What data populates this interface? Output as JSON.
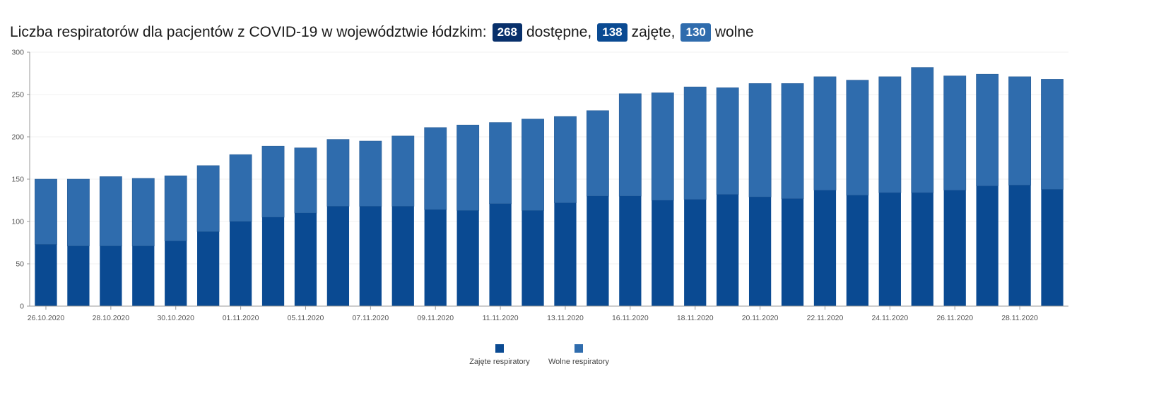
{
  "title": {
    "text": "Liczba respiratorów dla pacjentów z COVID-19 w województwie łódzkim:",
    "badges": [
      {
        "value": "268",
        "suffix": "dostępne,"
      },
      {
        "value": "138",
        "suffix": "zajęte,"
      },
      {
        "value": "130",
        "suffix": "wolne"
      }
    ]
  },
  "colors": {
    "occupied": "#0a4a92",
    "free": "#2f6cad",
    "axis": "#999999",
    "grid": "#f0f0f0"
  },
  "chart_data": {
    "type": "bar",
    "stacked": true,
    "x": [
      "26.10.2020",
      "27.10.2020",
      "28.10.2020",
      "29.10.2020",
      "30.10.2020",
      "31.10.2020",
      "01.11.2020",
      "02.11.2020",
      "05.11.2020",
      "06.11.2020",
      "07.11.2020",
      "08.11.2020",
      "09.11.2020",
      "10.11.2020",
      "11.11.2020",
      "12.11.2020",
      "13.11.2020",
      "15.11.2020",
      "16.11.2020",
      "17.11.2020",
      "18.11.2020",
      "19.11.2020",
      "20.11.2020",
      "21.11.2020",
      "22.11.2020",
      "23.11.2020",
      "24.11.2020",
      "25.11.2020",
      "26.11.2020",
      "27.11.2020",
      "28.11.2020",
      "29.11.2020"
    ],
    "x_tick_labels": [
      "26.10.2020",
      "28.10.2020",
      "30.10.2020",
      "01.11.2020",
      "05.11.2020",
      "07.11.2020",
      "09.11.2020",
      "11.11.2020",
      "13.11.2020",
      "16.11.2020",
      "18.11.2020",
      "20.11.2020",
      "22.11.2020",
      "24.11.2020",
      "26.11.2020",
      "28.11.2020"
    ],
    "series": [
      {
        "name": "Zajęte respiratory",
        "values": [
          73,
          71,
          71,
          71,
          77,
          88,
          100,
          105,
          110,
          118,
          118,
          118,
          114,
          113,
          121,
          113,
          122,
          130,
          130,
          125,
          126,
          132,
          129,
          127,
          137,
          131,
          134,
          134,
          137,
          142,
          143,
          138
        ]
      },
      {
        "name": "Wolne respiratory",
        "values": [
          77,
          79,
          82,
          80,
          77,
          78,
          79,
          84,
          77,
          79,
          77,
          83,
          97,
          101,
          96,
          108,
          102,
          101,
          121,
          127,
          133,
          126,
          134,
          136,
          134,
          136,
          137,
          148,
          135,
          132,
          128,
          130
        ]
      }
    ],
    "ylim": [
      0,
      300
    ],
    "yticks": [
      0,
      50,
      100,
      150,
      200,
      250,
      300
    ],
    "grid": true,
    "legend": "bottom-center"
  }
}
